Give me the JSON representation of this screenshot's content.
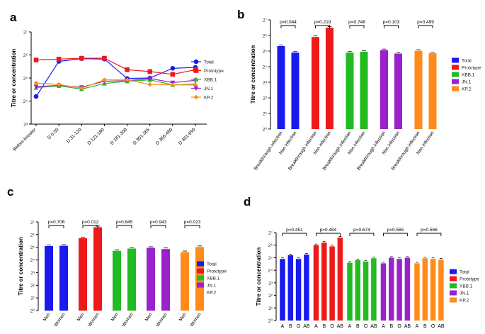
{
  "legend_series": [
    "Total",
    "Prototype",
    "XBB.1",
    "JN.1",
    "KP.2"
  ],
  "colors": {
    "Total": "#1a1aee",
    "Prototype": "#ee1a1a",
    "XBB.1": "#22bb22",
    "JN.1": "#9922cc",
    "KP.2": "#ff8c1a",
    "axis": "#000000"
  },
  "chart_data": [
    {
      "panel": "a",
      "type": "line",
      "ylabel": "Titre or concentration",
      "yticks": [
        "2³",
        "2⁴",
        "2⁵",
        "2⁶",
        "2⁷"
      ],
      "yticks_exp": [
        3,
        4,
        5,
        6,
        7
      ],
      "ylim_exp": [
        3,
        7
      ],
      "categories": [
        "Before booster",
        "D 0-30",
        "D 31-120",
        "D 121-180",
        "D 181-300",
        "D 301-365",
        "D 366-480",
        "D 481-690"
      ],
      "series": [
        {
          "name": "Total",
          "marker": "circle",
          "values_exp": [
            4.2,
            5.72,
            5.84,
            5.82,
            4.98,
            5.0,
            5.42,
            5.46
          ]
        },
        {
          "name": "Prototype",
          "marker": "square",
          "values_exp": [
            5.78,
            5.82,
            5.86,
            5.86,
            5.36,
            5.28,
            5.16,
            5.36
          ]
        },
        {
          "name": "XBB.1",
          "marker": "triangle-up",
          "values_exp": [
            4.58,
            4.66,
            4.52,
            4.76,
            4.86,
            4.92,
            4.7,
            4.74
          ]
        },
        {
          "name": "JN.1",
          "marker": "triangle-down",
          "values_exp": [
            4.62,
            4.68,
            4.6,
            4.86,
            4.88,
            4.98,
            4.8,
            4.9
          ]
        },
        {
          "name": "KP.2",
          "marker": "diamond",
          "values_exp": [
            4.78,
            4.72,
            4.56,
            4.92,
            4.92,
            4.72,
            4.7,
            4.7
          ]
        }
      ]
    },
    {
      "panel": "b",
      "type": "bar",
      "ylabel": "Titre or concentration",
      "yticks": [
        "2⁰",
        "2¹",
        "2²",
        "2³",
        "2⁴",
        "2⁵",
        "2⁶",
        "2⁷"
      ],
      "yticks_exp": [
        0,
        1,
        2,
        3,
        4,
        5,
        6,
        7
      ],
      "ylim_exp": [
        0,
        7
      ],
      "categories": [
        "Breakthrough infection",
        "Non infection"
      ],
      "groups": [
        {
          "name": "Total",
          "values_exp": [
            5.32,
            4.9
          ],
          "p_value": "p=0.044"
        },
        {
          "name": "Prototype",
          "values_exp": [
            5.9,
            6.5
          ],
          "p_value": "p=0.219"
        },
        {
          "name": "XBB.1",
          "values_exp": [
            4.9,
            4.96
          ],
          "p_value": "p=0.748"
        },
        {
          "name": "JN.1",
          "values_exp": [
            5.06,
            4.84
          ],
          "p_value": "p=0.103"
        },
        {
          "name": "KP.2",
          "values_exp": [
            5.02,
            4.86
          ],
          "p_value": "p=0.499"
        }
      ]
    },
    {
      "panel": "c",
      "type": "bar",
      "ylabel": "Titre or concentration",
      "yticks": [
        "2⁰",
        "2¹",
        "2²",
        "2³",
        "2⁴",
        "2⁵",
        "2⁶",
        "2⁷"
      ],
      "yticks_exp": [
        0,
        1,
        2,
        3,
        4,
        5,
        6,
        7
      ],
      "ylim_exp": [
        0,
        7
      ],
      "categories": [
        "Men",
        "Women"
      ],
      "groups": [
        {
          "name": "Total",
          "values_exp": [
            5.1,
            5.12
          ],
          "p_value": "p=0.706"
        },
        {
          "name": "Prototype",
          "values_exp": [
            5.72,
            6.58
          ],
          "p_value": "p=0.012"
        },
        {
          "name": "XBB.1",
          "values_exp": [
            4.72,
            4.9
          ],
          "p_value": "p=0.845"
        },
        {
          "name": "JN.1",
          "values_exp": [
            4.96,
            4.86
          ],
          "p_value": "p=0.943"
        },
        {
          "name": "KP.2",
          "values_exp": [
            4.62,
            5.02
          ],
          "p_value": "p=0.023"
        }
      ]
    },
    {
      "panel": "d",
      "type": "bar",
      "ylabel": "Titre or concentration",
      "yticks": [
        "2⁰",
        "2¹",
        "2²",
        "2³",
        "2⁴",
        "2⁵",
        "2⁶",
        "2⁷"
      ],
      "yticks_exp": [
        0,
        1,
        2,
        3,
        4,
        5,
        6,
        7
      ],
      "ylim_exp": [
        0,
        7
      ],
      "categories": [
        "A",
        "B",
        "O",
        "AB"
      ],
      "groups": [
        {
          "name": "Total",
          "values_exp": [
            4.9,
            5.2,
            4.9,
            5.25
          ],
          "p_value": "p=0.451"
        },
        {
          "name": "Prototype",
          "values_exp": [
            6.0,
            6.2,
            5.9,
            6.6
          ],
          "p_value": "p=0.484"
        },
        {
          "name": "XBB.1",
          "values_exp": [
            4.6,
            4.8,
            4.7,
            4.95
          ],
          "p_value": "p=0.674"
        },
        {
          "name": "JN.1",
          "values_exp": [
            4.55,
            5.0,
            4.9,
            5.0
          ],
          "p_value": "p=0.565"
        },
        {
          "name": "KP.2",
          "values_exp": [
            4.55,
            4.95,
            4.9,
            4.85
          ],
          "p_value": "p=0.566"
        }
      ]
    }
  ]
}
